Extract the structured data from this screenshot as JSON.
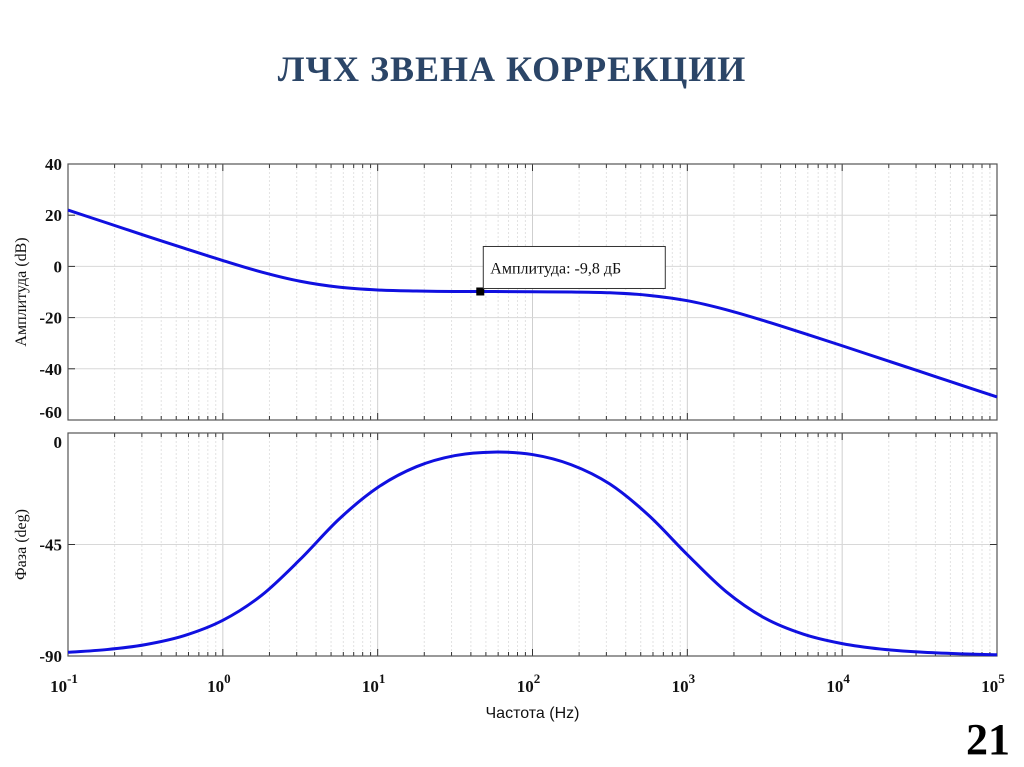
{
  "slide": {
    "title": "ЛЧХ ЗВЕНА КОРРЕКЦИИ",
    "page_number": "21"
  },
  "chart_data": [
    {
      "type": "line",
      "panel": "magnitude",
      "ylabel": "Амплитуда (dB)",
      "xscale": "log",
      "xlim": [
        0.1,
        100000
      ],
      "ylim": [
        -60,
        40
      ],
      "yticks": [
        "40",
        "20",
        "0",
        "-20",
        "-40",
        "-60"
      ],
      "grid": true,
      "color": "#1010e0",
      "x": [
        0.1,
        0.178,
        0.316,
        0.562,
        1,
        1.78,
        3.16,
        5.62,
        10,
        17.8,
        31.6,
        56.2,
        100,
        178,
        316,
        562,
        1000,
        1778,
        3162,
        5623,
        10000,
        17783,
        31623,
        56234,
        100000
      ],
      "y": [
        22.0,
        17.0,
        12.0,
        7.1,
        2.3,
        -2.2,
        -5.8,
        -8.1,
        -9.2,
        -9.6,
        -9.8,
        -9.8,
        -9.9,
        -10.0,
        -10.3,
        -11.3,
        -13.4,
        -16.9,
        -21.3,
        -26.1,
        -31.0,
        -36.0,
        -41.0,
        -46.0,
        -51.0
      ],
      "datatip": {
        "x": 46,
        "y": -9.8,
        "label": "Амплитуда: -9,8 дБ"
      }
    },
    {
      "type": "line",
      "panel": "phase",
      "ylabel": "Фаза (deg)",
      "xlabel": "Частота (Hz)",
      "xscale": "log",
      "xlim": [
        0.1,
        100000
      ],
      "ylim": [
        -90,
        0
      ],
      "yticks": [
        "0",
        "-45",
        "-90"
      ],
      "xticks": [
        {
          "base": "10",
          "exp": "-1"
        },
        {
          "base": "10",
          "exp": "0"
        },
        {
          "base": "10",
          "exp": "1"
        },
        {
          "base": "10",
          "exp": "2"
        },
        {
          "base": "10",
          "exp": "3"
        },
        {
          "base": "10",
          "exp": "4"
        },
        {
          "base": "10",
          "exp": "5"
        }
      ],
      "grid": true,
      "color": "#1010e0",
      "x": [
        0.1,
        0.178,
        0.316,
        0.562,
        1,
        1.78,
        3.16,
        5.62,
        10,
        17.8,
        31.6,
        56.2,
        100,
        178,
        316,
        562,
        1000,
        1778,
        3162,
        5623,
        10000,
        17783,
        31623,
        56234,
        100000
      ],
      "y": [
        -88.5,
        -87.4,
        -85.4,
        -81.8,
        -75.6,
        -65.5,
        -51.0,
        -34.8,
        -22.0,
        -13.6,
        -9.1,
        -7.7,
        -8.7,
        -12.8,
        -20.6,
        -33.2,
        -49.1,
        -64.0,
        -74.7,
        -81.2,
        -85.0,
        -87.2,
        -88.4,
        -89.1,
        -89.5
      ]
    }
  ]
}
